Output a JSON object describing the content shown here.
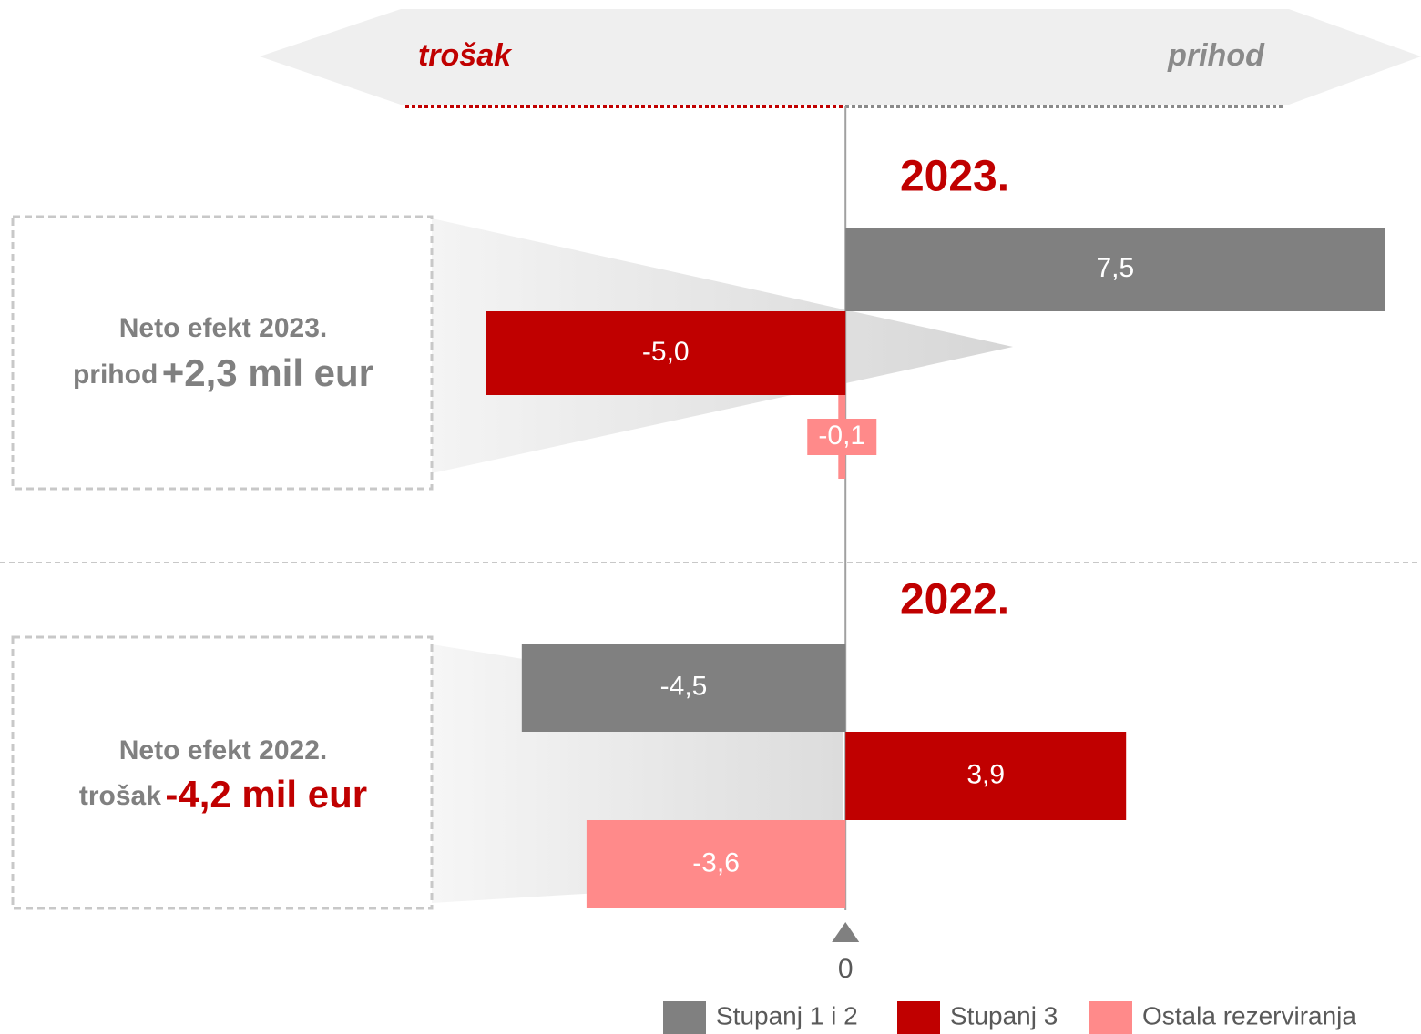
{
  "chart_data": {
    "type": "bar",
    "orientation": "horizontal",
    "categories": [
      "2023.",
      "2022."
    ],
    "series": [
      {
        "name": "Stupanj 1 i 2",
        "color": "#808080",
        "values": [
          7.5,
          -4.5
        ],
        "value_labels": [
          "7,5",
          "-4,5"
        ]
      },
      {
        "name": "Stupanj 3",
        "color": "#c00000",
        "values": [
          -5.0,
          3.9
        ],
        "value_labels": [
          "-5,0",
          "3,9"
        ]
      },
      {
        "name": "Ostala rezerviranja",
        "color": "#ff8a8a",
        "values": [
          -0.1,
          -3.6
        ],
        "value_labels": [
          "-0,1",
          "-3,6"
        ]
      }
    ],
    "xlim": [
      -11.5,
      8
    ],
    "xticks": [
      0
    ],
    "direction_labels": [
      "trošak",
      "prihod"
    ],
    "net_effects": [
      {
        "title": "Neto efekt 2023.",
        "lead": "prihod",
        "amount": "+2,3 mil eur"
      },
      {
        "title": "Neto efekt 2022.",
        "lead": "trošak",
        "amount": "-4,2 mil eur"
      }
    ],
    "legend": "bottom-right"
  }
}
